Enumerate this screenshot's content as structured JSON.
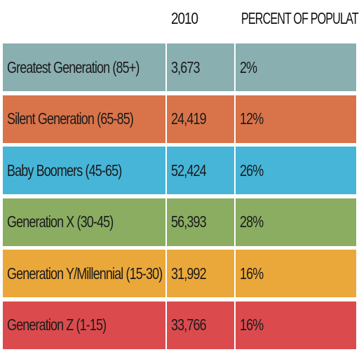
{
  "chart_data": {
    "type": "table",
    "columns": [
      "",
      "2010",
      "PERCENT OF POPULATION"
    ],
    "rows": [
      {
        "name": "Greatest Generation (85+)",
        "value": "3,673",
        "percent": "2%",
        "color": "#8aafb0"
      },
      {
        "name": "Silent Generation (65-85)",
        "value": "24,419",
        "percent": "12%",
        "color": "#d9744a"
      },
      {
        "name": "Baby Boomers (45-65)",
        "value": "52,424",
        "percent": "26%",
        "color": "#46b5d8"
      },
      {
        "name": "Generation X (30-45)",
        "value": "56,393",
        "percent": "28%",
        "color": "#8aad62"
      },
      {
        "name": "Generation Y/Millennial (15-30)",
        "value": "31,992",
        "percent": "16%",
        "color": "#eba83a"
      },
      {
        "name": "Generation Z (1-15)",
        "value": "33,766",
        "percent": "16%",
        "color": "#db4b4e"
      }
    ]
  }
}
